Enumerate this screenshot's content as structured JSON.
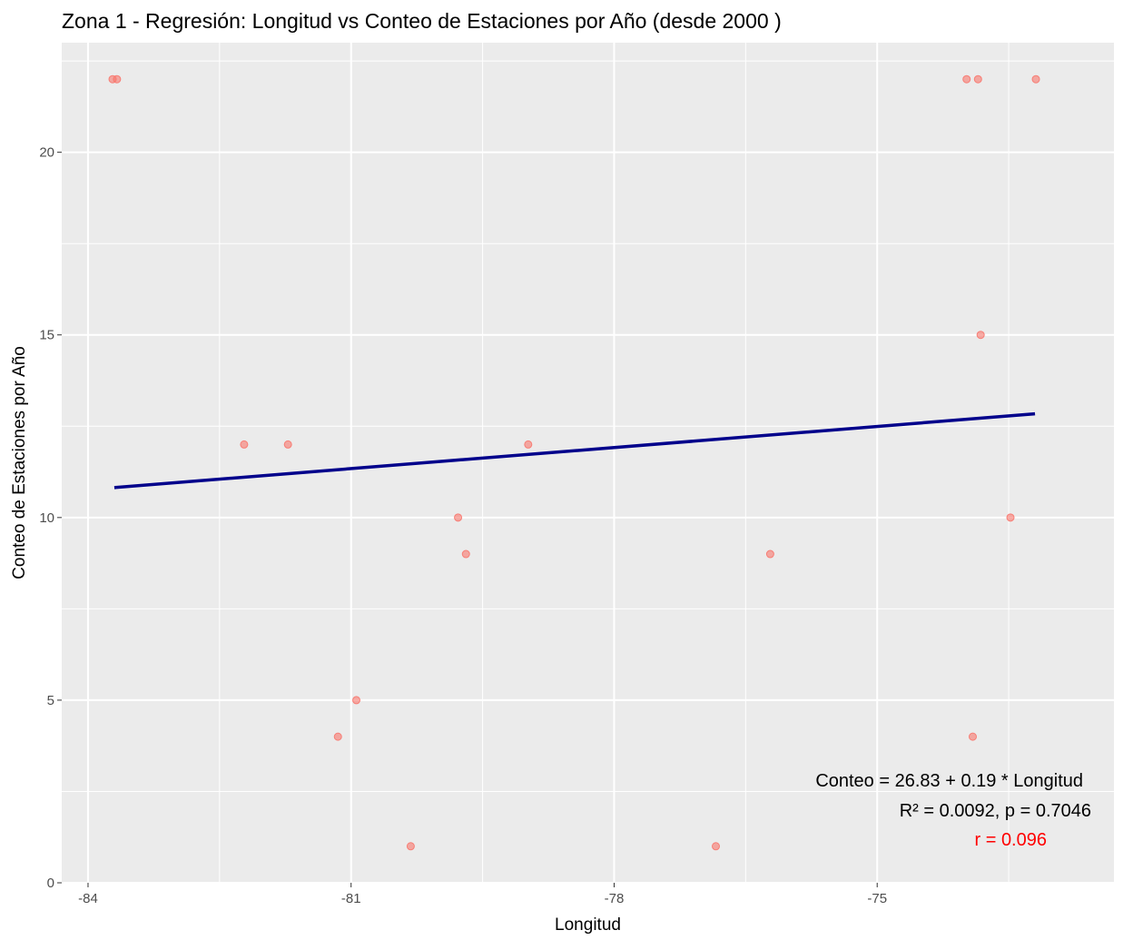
{
  "chart_data": {
    "type": "scatter",
    "title": "Zona 1 - Regresión: Longitud vs Conteo de Estaciones por Año (desde 2000 )",
    "xlabel": "Longitud",
    "ylabel": "Conteo de Estaciones por Año",
    "xlim": [
      -84.3,
      -72.3
    ],
    "ylim": [
      0,
      23.0
    ],
    "x_ticks": [
      -84,
      -81,
      -78,
      -75
    ],
    "y_ticks": [
      0,
      5,
      10,
      15,
      20
    ],
    "grid": true,
    "legend": "none",
    "points": [
      {
        "x": -83.72,
        "y": 22
      },
      {
        "x": -83.67,
        "y": 22
      },
      {
        "x": -82.22,
        "y": 12
      },
      {
        "x": -81.72,
        "y": 12
      },
      {
        "x": -81.15,
        "y": 4
      },
      {
        "x": -80.94,
        "y": 5
      },
      {
        "x": -80.32,
        "y": 1
      },
      {
        "x": -79.78,
        "y": 10
      },
      {
        "x": -79.69,
        "y": 9
      },
      {
        "x": -78.98,
        "y": 12
      },
      {
        "x": -76.84,
        "y": 1
      },
      {
        "x": -76.22,
        "y": 9
      },
      {
        "x": -73.98,
        "y": 22
      },
      {
        "x": -73.85,
        "y": 22
      },
      {
        "x": -73.82,
        "y": 15
      },
      {
        "x": -73.91,
        "y": 4
      },
      {
        "x": -73.48,
        "y": 10
      },
      {
        "x": -73.19,
        "y": 22
      }
    ],
    "regression_line": {
      "x": [
        -83.7,
        -73.2
      ],
      "y": [
        10.82,
        12.84
      ]
    },
    "annotations": {
      "equation": "Conteo = 26.83 + 0.19 * Longitud",
      "stats": "R² = 0.0092, p = 0.7046",
      "correlation": "r = 0.096"
    },
    "colors": {
      "panel": "#EBEBEB",
      "grid": "#FFFFFF",
      "points": "#F8766D",
      "line": "#00008B",
      "correlation_text": "#FF0000"
    }
  }
}
